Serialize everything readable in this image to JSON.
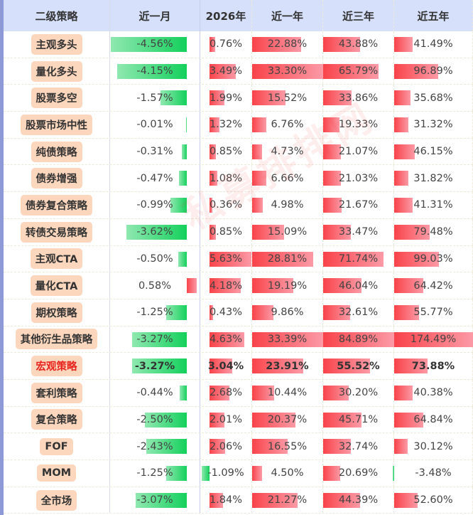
{
  "headers": [
    "二级策略",
    "近一月",
    "2026年",
    "近一年",
    "近三年",
    "近五年"
  ],
  "rows": [
    {
      "name": "主观多头",
      "values": [
        -4.56,
        0.76,
        22.88,
        43.88,
        41.49
      ]
    },
    {
      "name": "量化多头",
      "values": [
        -4.15,
        3.49,
        33.3,
        65.79,
        96.89
      ]
    },
    {
      "name": "股票多空",
      "values": [
        -1.57,
        1.99,
        15.52,
        33.86,
        35.68
      ]
    },
    {
      "name": "股票市场中性",
      "values": [
        -0.01,
        1.32,
        6.76,
        19.33,
        31.32
      ]
    },
    {
      "name": "纯债策略",
      "values": [
        -0.31,
        0.85,
        4.73,
        21.07,
        46.15
      ]
    },
    {
      "name": "债券增强",
      "values": [
        -0.47,
        1.08,
        6.66,
        21.03,
        31.82
      ]
    },
    {
      "name": "债券复合策略",
      "values": [
        -0.99,
        0.36,
        4.98,
        21.67,
        41.31
      ]
    },
    {
      "name": "转债交易策略",
      "values": [
        -3.62,
        0.85,
        15.09,
        33.47,
        79.48
      ]
    },
    {
      "name": "主观CTA",
      "values": [
        -0.5,
        5.63,
        28.81,
        71.74,
        99.03
      ]
    },
    {
      "name": "量化CTA",
      "values": [
        0.58,
        4.18,
        19.19,
        46.04,
        64.42
      ]
    },
    {
      "name": "期权策略",
      "values": [
        -1.25,
        0.43,
        9.86,
        32.61,
        55.77
      ]
    },
    {
      "name": "其他衍生品策略",
      "values": [
        -3.27,
        4.63,
        33.39,
        84.89,
        174.49
      ]
    },
    {
      "name": "宏观策略",
      "values": [
        -3.27,
        3.04,
        23.91,
        55.52,
        73.88
      ],
      "highlight": true
    },
    {
      "name": "套利策略",
      "values": [
        -0.44,
        2.68,
        10.44,
        30.2,
        40.38
      ]
    },
    {
      "name": "复合策略",
      "values": [
        -2.5,
        2.01,
        20.37,
        45.71,
        64.84
      ]
    },
    {
      "name": "FOF",
      "values": [
        -2.43,
        2.06,
        16.55,
        32.74,
        30.12
      ]
    },
    {
      "name": "MOM",
      "values": [
        -1.25,
        -1.09,
        4.5,
        20.69,
        -3.48
      ]
    },
    {
      "name": "全市场",
      "values": [
        -3.07,
        1.84,
        21.27,
        44.39,
        52.6
      ]
    }
  ],
  "watermark": "私募排排网",
  "colors": {
    "positive": "#f9434a",
    "negative": "#14d05c",
    "highlight": "#e8231c",
    "header_bg": "#d6e0fb",
    "pill_bg": "#fcd6bd"
  }
}
